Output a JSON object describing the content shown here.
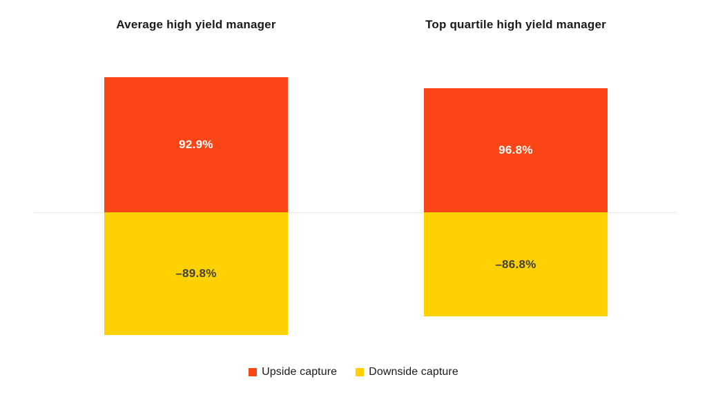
{
  "chart_data": {
    "type": "bar",
    "title": "",
    "xlabel": "",
    "ylabel": "",
    "baseline": 0,
    "grid": "zero-baseline-only",
    "legend_position": "bottom-center",
    "panels": [
      {
        "title": "Average high yield manager",
        "bars": [
          {
            "series": "Upside capture",
            "value": 92.9,
            "label": "92.9%"
          },
          {
            "series": "Downside capture",
            "value": -89.8,
            "label": "–89.8%"
          }
        ]
      },
      {
        "title": "Top quartile high yield manager",
        "bars": [
          {
            "series": "Upside capture",
            "value": 96.8,
            "label": "96.8%"
          },
          {
            "series": "Downside capture",
            "value": -86.8,
            "label": "–86.8%"
          }
        ]
      }
    ],
    "legend": [
      {
        "label": "Upside capture",
        "color": "#FA4616"
      },
      {
        "label": "Downside capture",
        "color": "#FFD100"
      }
    ]
  },
  "colors": {
    "upside_bar": "#FA4616",
    "downside_bar": "#FFD100",
    "upside_label_text": "#FFFFFF",
    "downside_label_text": "#3F3F3F",
    "title_text": "#1A1A1A",
    "legend_text": "#1A1A1A",
    "zero_line": "#E8E8E8",
    "background": "#FFFFFF"
  }
}
